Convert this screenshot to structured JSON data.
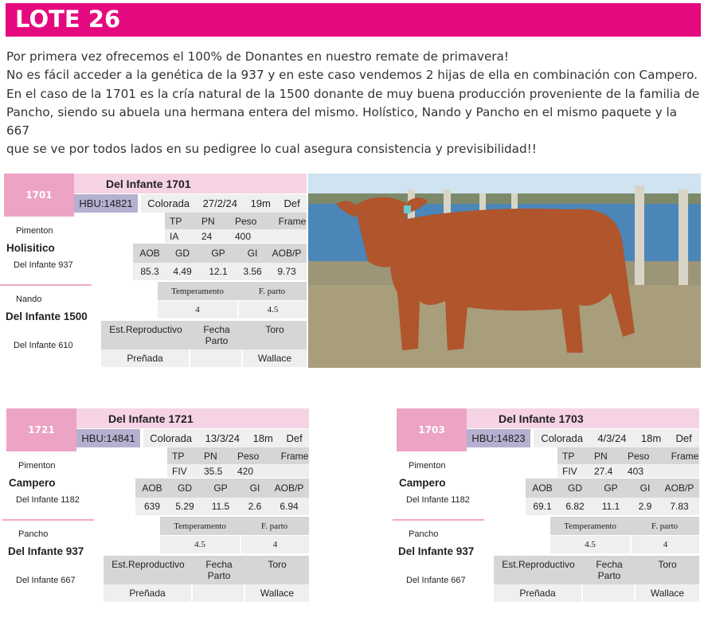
{
  "header": {
    "title": "LOTE 26",
    "color": "#e5097f"
  },
  "intro": [
    "Por primera vez ofrecemos el 100% de Donantes en nuestro remate de primavera!",
    "No es fácil acceder a la genética de la 937 y en este caso vendemos 2 hijas de ella en combinación con Campero.",
    "En el caso de la 1701 es la cría natural de la 1500 donante de muy buena producción proveniente de la familia de",
    "Pancho, siendo su abuela una hermana entera del mismo. Holístico, Nando y Pancho en el mismo paquete y la 667",
    "que se ve por todos lados en su pedigree lo cual asegura consistencia y previsibilidad!!"
  ],
  "labels": {
    "tp": "TP",
    "pn": "PN",
    "peso": "Peso",
    "frame": "Frame",
    "aob": "AOB",
    "gd": "GD",
    "gp": "GP",
    "gi": "GI",
    "aobp": "AOB/P",
    "temperamento": "Temperamento",
    "fparto": "F. parto",
    "est": "Est.Reproductivo",
    "fecha": "Fecha Parto",
    "toro": "Toro"
  },
  "cards": [
    {
      "number": "1701",
      "name": "Del Infante 1701",
      "hbu": "HBU:14821",
      "color": "Colorada",
      "date": "27/2/24",
      "age": "19m",
      "def": "Def",
      "tp": "IA",
      "pn": "24",
      "peso": "400",
      "frame": "",
      "aob": "85.3",
      "gd": "4.49",
      "gp": "12.1",
      "gi": "3.56",
      "aobp": "9.73",
      "temperamento": "4",
      "fparto": "4.5",
      "est": "Preñada",
      "fecha": "",
      "toro": "Wallace",
      "sire_sire": "Pimenton",
      "sire": "Holisitico",
      "sire_dam": "Del Infante 937",
      "dam_sire": "Nando",
      "dam": "Del Infante 1500",
      "dam_dam": "Del Infante 610"
    },
    {
      "number": "1721",
      "name": "Del Infante 1721",
      "hbu": "HBU:14841",
      "color": "Colorada",
      "date": "13/3/24",
      "age": "18m",
      "def": "Def",
      "tp": "FIV",
      "pn": "35.5",
      "peso": "420",
      "frame": "",
      "aob": "639",
      "gd": "5.29",
      "gp": "11.5",
      "gi": "2.6",
      "aobp": "6.94",
      "temperamento": "4.5",
      "fparto": "4",
      "est": "Preñada",
      "fecha": "",
      "toro": "Wallace",
      "sire_sire": "Pimenton",
      "sire": "Campero",
      "sire_dam": "Del Infante 1182",
      "dam_sire": "Pancho",
      "dam": "Del Infante 937",
      "dam_dam": "Del Infante 667"
    },
    {
      "number": "1703",
      "name": "Del Infante 1703",
      "hbu": "HBU:14823",
      "color": "Colorada",
      "date": "4/3/24",
      "age": "18m",
      "def": "Def",
      "tp": "FIV",
      "pn": "27.4",
      "peso": "403",
      "frame": "",
      "aob": "69.1",
      "gd": "6.82",
      "gp": "11.1",
      "gi": "2.9",
      "aobp": "7.83",
      "temperamento": "4.5",
      "fparto": "4",
      "est": "Preñada",
      "fecha": "",
      "toro": "Wallace",
      "sire_sire": "Pimenton",
      "sire": "Campero",
      "sire_dam": "Del Infante 1182",
      "dam_sire": "Pancho",
      "dam": "Del Infante 937",
      "dam_dam": "Del Infante 667"
    }
  ],
  "photo": {
    "subject": "red-angus-heifer",
    "accent": "#b0552c"
  }
}
